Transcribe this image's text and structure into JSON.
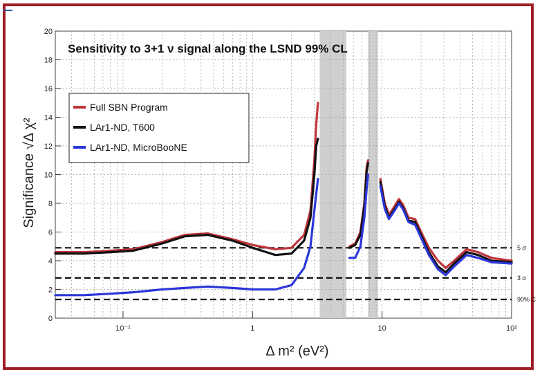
{
  "chart_data": {
    "type": "line",
    "title": "Sensitivity to 3+1 ν signal along the LSND 99% CL",
    "xlabel": "Δ m² (eV²)",
    "ylabel": "Significance √Δ χ²",
    "xscale": "log",
    "xlim": [
      0.03,
      100
    ],
    "ylim": [
      0,
      20
    ],
    "grid": true,
    "legend_position": "upper-left",
    "x_tick_labels": [
      "10⁻¹",
      "1",
      "10",
      "10²"
    ],
    "y_tick_labels": [
      "0",
      "2",
      "4",
      "6",
      "8",
      "10",
      "12",
      "14",
      "16",
      "18",
      "20"
    ],
    "reference_lines": [
      {
        "label": "5 σ",
        "y": 4.9
      },
      {
        "label": "3 σ",
        "y": 2.8
      },
      {
        "label": "90% C",
        "y": 1.3
      }
    ],
    "excluded_bands": [
      {
        "x": [
          3.3,
          5.3
        ]
      },
      {
        "x": [
          7.8,
          9.3
        ]
      }
    ],
    "series": [
      {
        "name": "Full SBN Program",
        "color": "#c0353d",
        "segments": [
          [
            [
              0.03,
              4.6
            ],
            [
              0.05,
              4.6
            ],
            [
              0.08,
              4.7
            ],
            [
              0.12,
              4.8
            ],
            [
              0.2,
              5.3
            ],
            [
              0.3,
              5.8
            ],
            [
              0.45,
              5.9
            ],
            [
              0.7,
              5.5
            ],
            [
              1.0,
              5.1
            ],
            [
              1.5,
              4.8
            ],
            [
              2.0,
              4.9
            ],
            [
              2.5,
              5.8
            ],
            [
              2.8,
              7.5
            ],
            [
              3.0,
              11.0
            ],
            [
              3.1,
              13.5
            ],
            [
              3.2,
              15.0
            ]
          ],
          [
            [
              5.6,
              5.0
            ],
            [
              6.2,
              5.2
            ],
            [
              6.8,
              6.0
            ],
            [
              7.3,
              8.0
            ],
            [
              7.6,
              10.5
            ],
            [
              7.8,
              11.0
            ]
          ],
          [
            [
              9.7,
              9.7
            ],
            [
              10.5,
              8.0
            ],
            [
              11.3,
              7.2
            ],
            [
              12.5,
              7.8
            ],
            [
              13.5,
              8.3
            ],
            [
              14.5,
              7.9
            ],
            [
              16.0,
              7.0
            ],
            [
              18.0,
              6.9
            ],
            [
              20.0,
              6.0
            ],
            [
              23.0,
              4.9
            ],
            [
              27.0,
              4.0
            ],
            [
              31.0,
              3.5
            ],
            [
              36.0,
              4.0
            ],
            [
              45.0,
              4.8
            ],
            [
              55.0,
              4.6
            ],
            [
              70.0,
              4.2
            ],
            [
              100.0,
              4.0
            ]
          ]
        ]
      },
      {
        "name": "LAr1-ND, T600",
        "color": "#111111",
        "segments": [
          [
            [
              0.03,
              4.5
            ],
            [
              0.05,
              4.5
            ],
            [
              0.08,
              4.6
            ],
            [
              0.12,
              4.7
            ],
            [
              0.2,
              5.2
            ],
            [
              0.3,
              5.7
            ],
            [
              0.45,
              5.8
            ],
            [
              0.7,
              5.4
            ],
            [
              1.0,
              4.9
            ],
            [
              1.5,
              4.4
            ],
            [
              2.0,
              4.5
            ],
            [
              2.5,
              5.4
            ],
            [
              2.8,
              7.0
            ],
            [
              3.0,
              10.0
            ],
            [
              3.1,
              12.0
            ],
            [
              3.2,
              12.5
            ]
          ],
          [
            [
              5.6,
              4.9
            ],
            [
              6.2,
              5.1
            ],
            [
              6.8,
              5.8
            ],
            [
              7.3,
              7.8
            ],
            [
              7.6,
              10.2
            ],
            [
              7.8,
              10.8
            ]
          ],
          [
            [
              9.7,
              9.5
            ],
            [
              10.5,
              7.8
            ],
            [
              11.3,
              7.0
            ],
            [
              12.5,
              7.6
            ],
            [
              13.5,
              8.1
            ],
            [
              14.5,
              7.7
            ],
            [
              16.0,
              6.8
            ],
            [
              18.0,
              6.7
            ],
            [
              20.0,
              5.8
            ],
            [
              23.0,
              4.6
            ],
            [
              27.0,
              3.6
            ],
            [
              31.0,
              3.2
            ],
            [
              36.0,
              3.8
            ],
            [
              45.0,
              4.6
            ],
            [
              55.0,
              4.4
            ],
            [
              70.0,
              4.0
            ],
            [
              100.0,
              3.9
            ]
          ]
        ]
      },
      {
        "name": "LAr1-ND, MicroBooNE",
        "color": "#2b36d9",
        "segments": [
          [
            [
              0.03,
              1.6
            ],
            [
              0.05,
              1.6
            ],
            [
              0.08,
              1.7
            ],
            [
              0.12,
              1.8
            ],
            [
              0.2,
              2.0
            ],
            [
              0.3,
              2.1
            ],
            [
              0.45,
              2.2
            ],
            [
              0.7,
              2.1
            ],
            [
              1.0,
              2.0
            ],
            [
              1.5,
              2.0
            ],
            [
              2.0,
              2.3
            ],
            [
              2.5,
              3.5
            ],
            [
              2.8,
              5.0
            ],
            [
              3.0,
              7.5
            ],
            [
              3.2,
              9.7
            ]
          ],
          [
            [
              5.6,
              4.2
            ],
            [
              6.2,
              4.2
            ],
            [
              6.8,
              5.0
            ],
            [
              7.3,
              7.0
            ],
            [
              7.6,
              9.0
            ],
            [
              7.8,
              10.0
            ]
          ],
          [
            [
              9.7,
              9.2
            ],
            [
              10.5,
              7.6
            ],
            [
              11.3,
              6.9
            ],
            [
              12.5,
              7.5
            ],
            [
              13.5,
              8.0
            ],
            [
              14.5,
              7.6
            ],
            [
              16.0,
              6.7
            ],
            [
              18.0,
              6.5
            ],
            [
              20.0,
              5.6
            ],
            [
              23.0,
              4.4
            ],
            [
              27.0,
              3.4
            ],
            [
              31.0,
              3.0
            ],
            [
              36.0,
              3.6
            ],
            [
              45.0,
              4.4
            ],
            [
              55.0,
              4.2
            ],
            [
              70.0,
              3.9
            ],
            [
              100.0,
              3.8
            ]
          ]
        ]
      }
    ]
  }
}
